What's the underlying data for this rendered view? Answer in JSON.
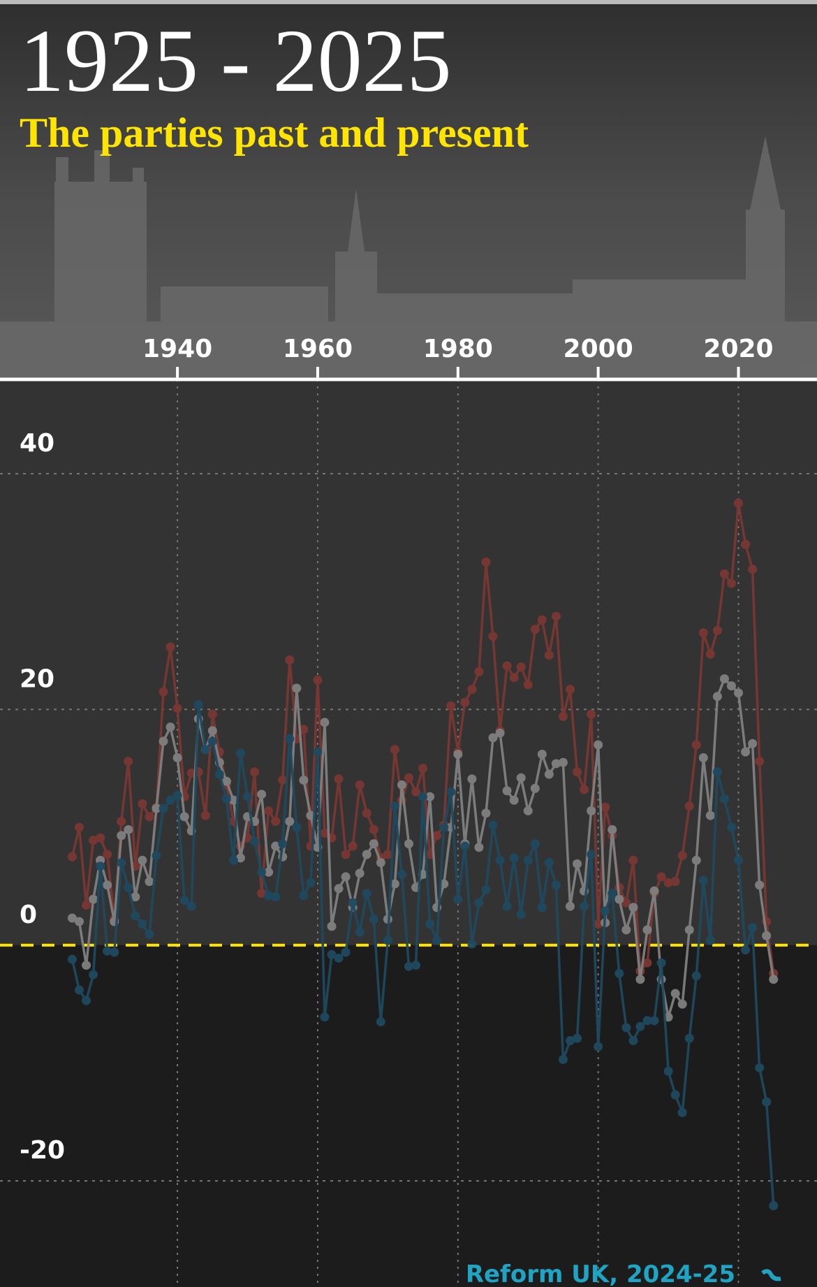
{
  "chart_data": {
    "type": "line",
    "title": "1925 - 2025",
    "subtitle": "The parties past and present",
    "annotation": "Reform UK, 2024-25",
    "x": [
      1925,
      1926,
      1927,
      1928,
      1929,
      1930,
      1931,
      1932,
      1933,
      1934,
      1935,
      1936,
      1937,
      1938,
      1939,
      1940,
      1941,
      1942,
      1943,
      1944,
      1945,
      1946,
      1947,
      1948,
      1949,
      1950,
      1951,
      1952,
      1953,
      1954,
      1955,
      1956,
      1957,
      1958,
      1959,
      1960,
      1961,
      1962,
      1963,
      1964,
      1965,
      1966,
      1967,
      1968,
      1969,
      1970,
      1971,
      1972,
      1973,
      1974,
      1975,
      1976,
      1977,
      1978,
      1979,
      1980,
      1981,
      1982,
      1983,
      1984,
      1985,
      1986,
      1987,
      1988,
      1989,
      1990,
      1991,
      1992,
      1993,
      1994,
      1995,
      1996,
      1997,
      1998,
      1999,
      2000,
      2001,
      2002,
      2003,
      2004,
      2005,
      2006,
      2007,
      2008,
      2009,
      2010,
      2011,
      2012,
      2013,
      2014,
      2015,
      2016,
      2017,
      2018,
      2019,
      2020,
      2021,
      2022,
      2023,
      2024,
      2025
    ],
    "series": [
      {
        "color": "#7a3832",
        "values": [
          7.5,
          10,
          3.4,
          8.9,
          9.1,
          7.7,
          2.2,
          10.5,
          15.6,
          6.7,
          12,
          10.9,
          11.7,
          21.5,
          25.3,
          20.1,
          12.6,
          14.6,
          14.7,
          11,
          19.6,
          16.4,
          13.6,
          10.5,
          8.4,
          9.1,
          14.7,
          4.4,
          11.4,
          10.5,
          14,
          24.2,
          17.5,
          18.3,
          8.4,
          22.5,
          9.5,
          9.1,
          14.1,
          7.7,
          8.4,
          13.6,
          11.2,
          9.8,
          7.4,
          7.7,
          16.6,
          12.3,
          14.2,
          13,
          15,
          7.7,
          9.3,
          10.2,
          20.3,
          16.4,
          20.6,
          21.7,
          23.2,
          32.5,
          26.2,
          18.2,
          23.7,
          22.7,
          23.6,
          22.1,
          26.8,
          27.6,
          24.6,
          27.9,
          19.4,
          21.7,
          14.7,
          13.2,
          19.6,
          1.8,
          11.7,
          9.3,
          4.9,
          3.6,
          7.2,
          -2.2,
          -1.5,
          4.4,
          5.8,
          5.3,
          5.4,
          7.6,
          11.8,
          17,
          26.5,
          24.7,
          26.7,
          31.5,
          30.7,
          37.5,
          34,
          31.9,
          15.6,
          2,
          -2.4
        ]
      },
      {
        "color": "#808080",
        "values": [
          2.3,
          2,
          -1.7,
          3.9,
          7.2,
          5.1,
          2,
          9.3,
          9.8,
          4.1,
          7.2,
          5.4,
          11.6,
          17.3,
          18.5,
          15.9,
          10.9,
          9.7,
          19.2,
          16.6,
          18.2,
          15.5,
          13.9,
          12.3,
          7.4,
          10.9,
          10.5,
          12.8,
          6.2,
          8.4,
          7.5,
          10.5,
          21.8,
          14,
          11,
          8.3,
          18.9,
          1.6,
          4.8,
          5.8,
          3.2,
          6.1,
          7.7,
          8.6,
          7,
          2.2,
          5.2,
          13.6,
          8.6,
          4.9,
          6,
          12.6,
          3.2,
          5.2,
          10,
          16.2,
          8.6,
          14.1,
          8.3,
          11.2,
          17.6,
          18,
          13.1,
          12.3,
          14.2,
          11.4,
          13.3,
          16.2,
          14.5,
          15.4,
          15.5,
          3.3,
          6.9,
          4.6,
          11.4,
          17,
          1.9,
          9.8,
          3.9,
          1.3,
          3.2,
          -2.9,
          1.3,
          4.6,
          -2.9,
          -6.1,
          -4.1,
          -5.0,
          1.3,
          7.2,
          15.9,
          11,
          21.1,
          22.6,
          22,
          21.4,
          16.4,
          17.1,
          5.1,
          0.8,
          -2.9
        ]
      },
      {
        "color": "#1f4a60",
        "values": [
          -1.2,
          -3.8,
          -4.7,
          -2.5,
          6.7,
          -0.5,
          -0.6,
          7,
          4.9,
          2.5,
          1.8,
          0.9,
          7.6,
          11.6,
          12.3,
          12.7,
          3.8,
          3.3,
          20.4,
          16.6,
          17.3,
          14.5,
          12.4,
          7.2,
          16.3,
          12.6,
          8.8,
          6.2,
          4.2,
          4.1,
          8.6,
          17.5,
          10,
          4.2,
          5.3,
          16.4,
          -6.1,
          -0.8,
          -1.1,
          -0.6,
          3.6,
          1.1,
          4.4,
          2.2,
          -6.5,
          0.4,
          11.8,
          6,
          -1.8,
          -1.7,
          12.6,
          1.8,
          0.4,
          10,
          13,
          3.9,
          8.4,
          0.1,
          3.6,
          4.7,
          10.2,
          7.2,
          3.3,
          7.4,
          2.6,
          7.2,
          8.6,
          3.2,
          7,
          5.1,
          -9.7,
          -8.1,
          -7.9,
          3.3,
          7.7,
          -8.6,
          2.9,
          4.4,
          -2.4,
          -7,
          -8.1,
          -6.9,
          -6.4,
          -6.4,
          -1.5,
          -10.7,
          -12.7,
          -14.2,
          -7.9,
          -2.6,
          5.5,
          0.4,
          14.7,
          12.4,
          10,
          7.2,
          -0.4,
          1.5,
          -10.4,
          -13.3,
          -22.1
        ]
      }
    ],
    "xlim": [
      1914.7,
      2031.2
    ],
    "xticks": [
      1940,
      1960,
      1980,
      2000,
      2020
    ],
    "ylim": [
      -29,
      48
    ],
    "yticks": [
      -20,
      0,
      20,
      40
    ],
    "grid": true,
    "zero_line_color": "#ffe500",
    "annotation_color": "#1fa4c4"
  }
}
